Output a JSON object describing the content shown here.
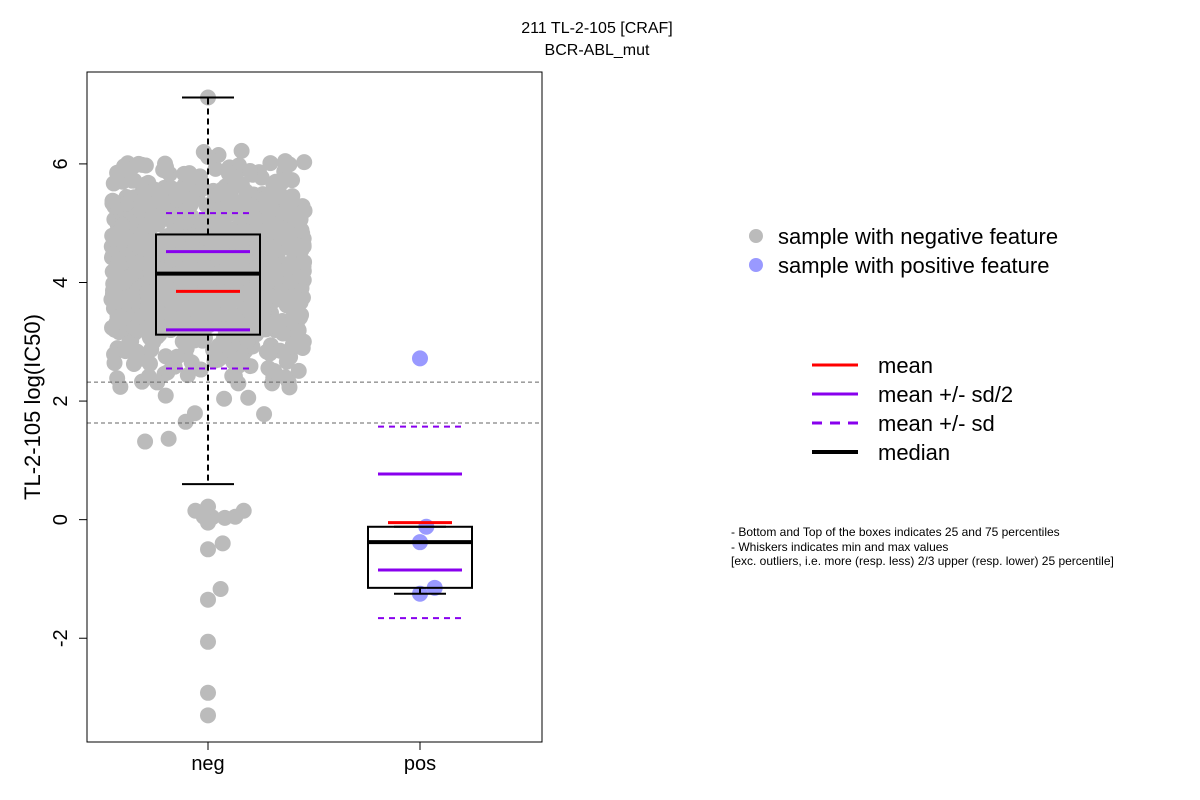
{
  "chart_data": {
    "type": "boxplot",
    "title": "211 TL-2-105 [CRAF]",
    "subtitle": "BCR-ABL_mut",
    "ylabel": "TL-2-105 log(IC50)",
    "xlabel": "",
    "ylim": [
      -3.75,
      7.55
    ],
    "yticks": [
      -2,
      0,
      2,
      4,
      6
    ],
    "categories": [
      "neg",
      "pos"
    ],
    "threshold_lines": [
      2.32,
      1.63
    ],
    "grid": false,
    "groups": [
      {
        "name": "neg",
        "color": "#bbbbbb",
        "box": {
          "q1": 3.12,
          "median": 4.15,
          "q3": 4.81,
          "whisker_low": 0.6,
          "whisker_high": 7.12
        },
        "mean": 3.85,
        "mean_plus_half_sd": 4.52,
        "mean_minus_half_sd": 3.2,
        "mean_plus_sd": 5.17,
        "mean_minus_sd": 2.55,
        "points_note": "~1000 samples",
        "outliers": [
          {
            "x_offset": -0.06,
            "y": 0.15
          },
          {
            "x_offset": -0.02,
            "y": 0.05
          },
          {
            "x_offset": 0.02,
            "y": 0.04
          },
          {
            "x_offset": 0.08,
            "y": 0.03
          },
          {
            "x_offset": 0.13,
            "y": 0.05
          },
          {
            "x_offset": 0.17,
            "y": 0.15
          },
          {
            "x_offset": 0.0,
            "y": 0.22
          },
          {
            "x_offset": 0.0,
            "y": -0.05
          },
          {
            "x_offset": 0.0,
            "y": -0.5
          },
          {
            "x_offset": 0.07,
            "y": -0.4
          },
          {
            "x_offset": 0.0,
            "y": -1.35
          },
          {
            "x_offset": 0.06,
            "y": -1.17
          },
          {
            "x_offset": 0.0,
            "y": -2.06
          },
          {
            "x_offset": 0.0,
            "y": -2.92
          },
          {
            "x_offset": 0.0,
            "y": -3.3
          }
        ]
      },
      {
        "name": "pos",
        "color": "#9999ff",
        "box": {
          "q1": -1.15,
          "median": -0.38,
          "q3": -0.12,
          "whisker_low": -1.25,
          "whisker_high": -0.12
        },
        "mean": -0.05,
        "mean_plus_half_sd": 0.77,
        "mean_minus_half_sd": -0.85,
        "mean_plus_sd": 1.57,
        "mean_minus_sd": -1.66,
        "points": [
          {
            "x_offset": 0.0,
            "y": 2.72
          },
          {
            "x_offset": 0.03,
            "y": -0.12
          },
          {
            "x_offset": 0.0,
            "y": -0.38
          },
          {
            "x_offset": 0.07,
            "y": -1.15
          },
          {
            "x_offset": 0.0,
            "y": -1.25
          }
        ]
      }
    ],
    "legend_points": [
      {
        "label": "sample with negative feature",
        "color": "#bbbbbb"
      },
      {
        "label": "sample with positive feature",
        "color": "#9999ff"
      }
    ],
    "legend_lines": [
      {
        "label": "mean",
        "color": "#ff0000",
        "style": "solid"
      },
      {
        "label": "mean +/- sd/2",
        "color": "#8800ee",
        "style": "solid"
      },
      {
        "label": "mean +/- sd",
        "color": "#8800ee",
        "style": "dashed"
      },
      {
        "label": "median",
        "color": "#000000",
        "style": "thick"
      }
    ],
    "notes": [
      "- Bottom and Top of the boxes indicates 25 and 75 percentiles",
      "- Whiskers indicates min and max values",
      "[exc. outliers, i.e. more (resp. less) 2/3 upper (resp. lower) 25 percentile]"
    ]
  }
}
